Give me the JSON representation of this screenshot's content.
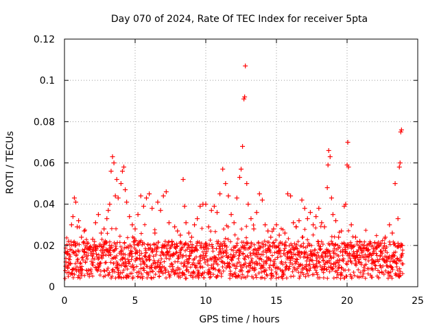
{
  "chart_data": {
    "type": "scatter",
    "title": "Day 070 of 2024, Rate Of TEC Index for receiver 5pta",
    "xlabel": "GPS time / hours",
    "ylabel": "ROTI / TECUs",
    "xlim": [
      0,
      25
    ],
    "ylim": [
      0,
      0.12
    ],
    "x_ticks": [
      0,
      5,
      10,
      15,
      20,
      25
    ],
    "x_tick_labels": [
      "0",
      "5",
      "10",
      "15",
      "20",
      "25"
    ],
    "y_ticks": [
      0,
      0.02,
      0.04,
      0.06,
      0.08,
      0.1,
      0.12
    ],
    "y_tick_labels": [
      "0",
      "0.02",
      "0.04",
      "0.06",
      "0.08",
      "0.1",
      "0.12"
    ],
    "grid": true,
    "marker": "+",
    "color": "#ff0000",
    "series": [
      {
        "name": "ROTI",
        "points": [
          [
            0.1,
            0.012
          ],
          [
            0.2,
            0.016
          ],
          [
            0.3,
            0.022
          ],
          [
            0.4,
            0.018
          ],
          [
            0.5,
            0.03
          ],
          [
            0.6,
            0.034
          ],
          [
            0.7,
            0.043
          ],
          [
            0.8,
            0.041
          ],
          [
            0.9,
            0.029
          ],
          [
            1.0,
            0.032
          ],
          [
            1.2,
            0.024
          ],
          [
            1.4,
            0.027
          ],
          [
            1.6,
            0.021
          ],
          [
            1.8,
            0.019
          ],
          [
            2.0,
            0.023
          ],
          [
            2.2,
            0.031
          ],
          [
            2.4,
            0.035
          ],
          [
            2.6,
            0.026
          ],
          [
            2.8,
            0.028
          ],
          [
            3.0,
            0.033
          ],
          [
            3.1,
            0.037
          ],
          [
            3.2,
            0.04
          ],
          [
            3.3,
            0.056
          ],
          [
            3.4,
            0.063
          ],
          [
            3.5,
            0.06
          ],
          [
            3.6,
            0.044
          ],
          [
            3.7,
            0.052
          ],
          [
            3.8,
            0.043
          ],
          [
            4.0,
            0.05
          ],
          [
            4.1,
            0.056
          ],
          [
            4.2,
            0.058
          ],
          [
            4.3,
            0.047
          ],
          [
            4.4,
            0.041
          ],
          [
            4.6,
            0.034
          ],
          [
            4.8,
            0.03
          ],
          [
            5.0,
            0.028
          ],
          [
            5.2,
            0.035
          ],
          [
            5.4,
            0.044
          ],
          [
            5.6,
            0.039
          ],
          [
            5.8,
            0.043
          ],
          [
            6.0,
            0.045
          ],
          [
            6.2,
            0.038
          ],
          [
            6.4,
            0.026
          ],
          [
            6.6,
            0.041
          ],
          [
            6.8,
            0.037
          ],
          [
            7.0,
            0.044
          ],
          [
            7.2,
            0.046
          ],
          [
            7.4,
            0.031
          ],
          [
            7.6,
            0.022
          ],
          [
            7.8,
            0.029
          ],
          [
            8.0,
            0.027
          ],
          [
            8.2,
            0.025
          ],
          [
            8.4,
            0.052
          ],
          [
            8.5,
            0.039
          ],
          [
            8.6,
            0.031
          ],
          [
            8.8,
            0.026
          ],
          [
            9.0,
            0.024
          ],
          [
            9.2,
            0.03
          ],
          [
            9.4,
            0.033
          ],
          [
            9.6,
            0.039
          ],
          [
            9.8,
            0.04
          ],
          [
            10.0,
            0.04
          ],
          [
            10.2,
            0.029
          ],
          [
            10.4,
            0.037
          ],
          [
            10.6,
            0.039
          ],
          [
            10.8,
            0.036
          ],
          [
            11.0,
            0.045
          ],
          [
            11.2,
            0.057
          ],
          [
            11.4,
            0.05
          ],
          [
            11.6,
            0.044
          ],
          [
            11.8,
            0.035
          ],
          [
            12.0,
            0.031
          ],
          [
            12.2,
            0.043
          ],
          [
            12.4,
            0.053
          ],
          [
            12.5,
            0.057
          ],
          [
            12.6,
            0.068
          ],
          [
            12.7,
            0.091
          ],
          [
            12.75,
            0.092
          ],
          [
            12.8,
            0.107
          ],
          [
            12.9,
            0.05
          ],
          [
            13.0,
            0.04
          ],
          [
            13.2,
            0.033
          ],
          [
            13.4,
            0.028
          ],
          [
            13.6,
            0.036
          ],
          [
            13.8,
            0.045
          ],
          [
            14.0,
            0.042
          ],
          [
            14.2,
            0.03
          ],
          [
            14.4,
            0.027
          ],
          [
            14.6,
            0.024
          ],
          [
            14.8,
            0.028
          ],
          [
            15.0,
            0.03
          ],
          [
            15.2,
            0.025
          ],
          [
            15.4,
            0.021
          ],
          [
            15.6,
            0.026
          ],
          [
            15.8,
            0.045
          ],
          [
            16.0,
            0.044
          ],
          [
            16.2,
            0.031
          ],
          [
            16.4,
            0.029
          ],
          [
            16.6,
            0.032
          ],
          [
            16.8,
            0.042
          ],
          [
            17.0,
            0.038
          ],
          [
            17.2,
            0.033
          ],
          [
            17.4,
            0.036
          ],
          [
            17.6,
            0.03
          ],
          [
            17.8,
            0.034
          ],
          [
            18.0,
            0.038
          ],
          [
            18.2,
            0.031
          ],
          [
            18.4,
            0.029
          ],
          [
            18.6,
            0.048
          ],
          [
            18.65,
            0.059
          ],
          [
            18.7,
            0.066
          ],
          [
            18.8,
            0.063
          ],
          [
            18.9,
            0.043
          ],
          [
            19.0,
            0.035
          ],
          [
            19.2,
            0.032
          ],
          [
            19.4,
            0.024
          ],
          [
            19.6,
            0.027
          ],
          [
            19.8,
            0.039
          ],
          [
            19.9,
            0.04
          ],
          [
            20.0,
            0.059
          ],
          [
            20.05,
            0.07
          ],
          [
            20.1,
            0.058
          ],
          [
            20.3,
            0.03
          ],
          [
            20.6,
            0.024
          ],
          [
            20.9,
            0.022
          ],
          [
            21.2,
            0.02
          ],
          [
            21.5,
            0.018
          ],
          [
            21.8,
            0.016
          ],
          [
            22.1,
            0.019
          ],
          [
            22.4,
            0.021
          ],
          [
            22.7,
            0.024
          ],
          [
            23.0,
            0.03
          ],
          [
            23.2,
            0.026
          ],
          [
            23.4,
            0.05
          ],
          [
            23.6,
            0.033
          ],
          [
            23.7,
            0.058
          ],
          [
            23.75,
            0.06
          ],
          [
            23.8,
            0.075
          ],
          [
            23.85,
            0.076
          ],
          [
            23.9,
            0.02
          ]
        ]
      }
    ]
  }
}
